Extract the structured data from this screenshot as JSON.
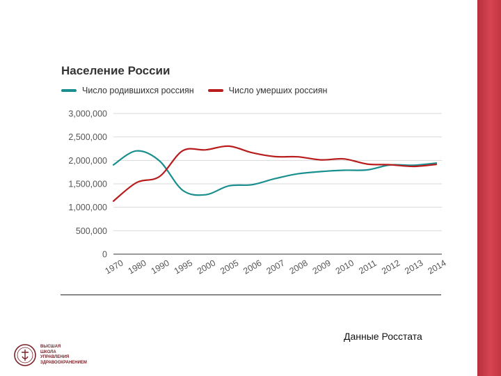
{
  "chart_data": {
    "type": "line",
    "title": "Население России",
    "categories": [
      "1970",
      "1980",
      "1990",
      "1995",
      "2000",
      "2005",
      "2006",
      "2007",
      "2008",
      "2009",
      "2010",
      "2011",
      "2012",
      "2013",
      "2014"
    ],
    "series": [
      {
        "name": "Число родившихся россиян",
        "color": "#1a8f8f",
        "values": [
          1904000,
          2203000,
          1989000,
          1364000,
          1267000,
          1457000,
          1480000,
          1610000,
          1714000,
          1762000,
          1789000,
          1797000,
          1902000,
          1896000,
          1943000
        ]
      },
      {
        "name": "Число умерших россиян",
        "color": "#b81c1c",
        "values": [
          1131000,
          1525000,
          1656000,
          2204000,
          2225000,
          2304000,
          2166000,
          2081000,
          2076000,
          2011000,
          2032000,
          1922000,
          1907000,
          1872000,
          1914000
        ]
      }
    ],
    "ylim": [
      0,
      3000000
    ],
    "yticks": [
      "0",
      "500,000",
      "1,000,000",
      "1,500,000",
      "2,000,000",
      "2,500,000",
      "3,000,000"
    ],
    "grid": true,
    "legend_position": "top-left"
  },
  "source_text": "Данные Росстата",
  "logo": {
    "lines": [
      "ВЫСШАЯ",
      "ШКОЛА",
      "УПРАВЛЕНИЯ",
      "ЗДРАВООХРАНЕНИЕМ"
    ]
  },
  "colors": {
    "accent_stripe": "#c8323e",
    "births_line": "#1a8f8f",
    "deaths_line": "#b81c1c"
  }
}
